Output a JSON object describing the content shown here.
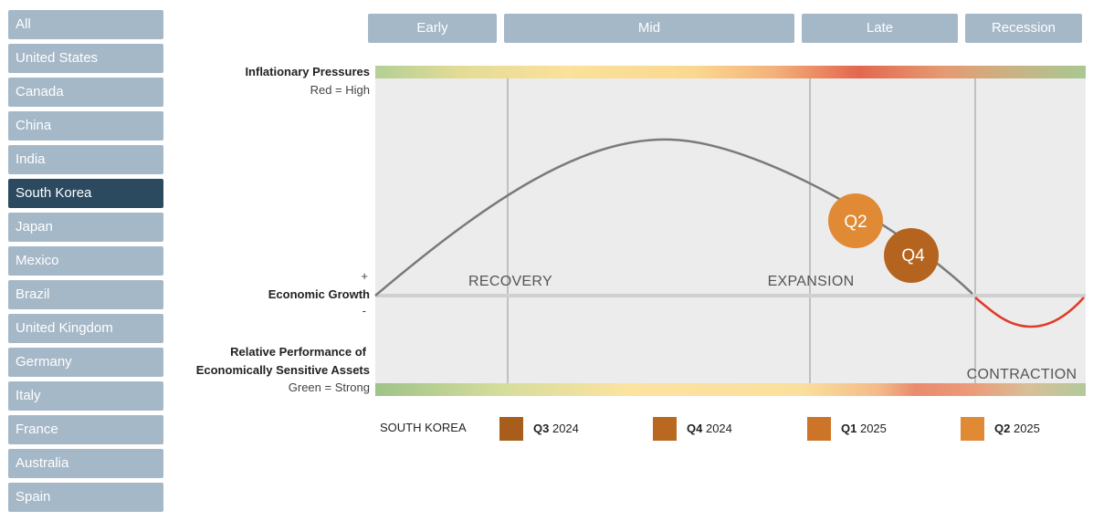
{
  "sidebar": {
    "items": [
      {
        "label": "All",
        "active": false
      },
      {
        "label": "United States",
        "active": false
      },
      {
        "label": "Canada",
        "active": false
      },
      {
        "label": "China",
        "active": false
      },
      {
        "label": "India",
        "active": false
      },
      {
        "label": "South Korea",
        "active": true
      },
      {
        "label": "Japan",
        "active": false
      },
      {
        "label": "Mexico",
        "active": false
      },
      {
        "label": "Brazil",
        "active": false
      },
      {
        "label": "United Kingdom",
        "active": false
      },
      {
        "label": "Germany",
        "active": false
      },
      {
        "label": "Italy",
        "active": false
      },
      {
        "label": "France",
        "active": false
      },
      {
        "label": "Australia",
        "active": false
      },
      {
        "label": "Spain",
        "active": false
      }
    ]
  },
  "phases": {
    "early": "Early",
    "mid": "Mid",
    "late": "Late",
    "recession": "Recession"
  },
  "labels": {
    "inflation_title": "Inflationary Pressures",
    "inflation_sub": "Red = High",
    "growth_plus": "+",
    "growth_title": "Economic Growth",
    "growth_minus": "-",
    "relperf_title_1": "Relative Performance of",
    "relperf_title_2": "Economically Sensitive Assets",
    "relperf_sub": "Green = Strong"
  },
  "regions": {
    "recovery": "RECOVERY",
    "expansion": "EXPANSION",
    "contraction": "CONTRACTION"
  },
  "markers": [
    {
      "label": "Q2",
      "color": "#e08a35"
    },
    {
      "label": "Q4",
      "color": "#b5641f"
    }
  ],
  "legend": {
    "country": "SOUTH KOREA",
    "items": [
      {
        "quarter": "Q3",
        "year": "2024",
        "color": "#a85d1c"
      },
      {
        "quarter": "Q4",
        "year": "2024",
        "color": "#b8681f"
      },
      {
        "quarter": "Q1",
        "year": "2025",
        "color": "#cc7428"
      },
      {
        "quarter": "Q2",
        "year": "2025",
        "color": "#e08a35"
      }
    ]
  },
  "colors": {
    "button": "#a5b8c8",
    "button_active": "#2c4a5f",
    "plot_background": "#ececec",
    "curve": "#7a7a7a",
    "recession_curve": "#e03b2a"
  }
}
